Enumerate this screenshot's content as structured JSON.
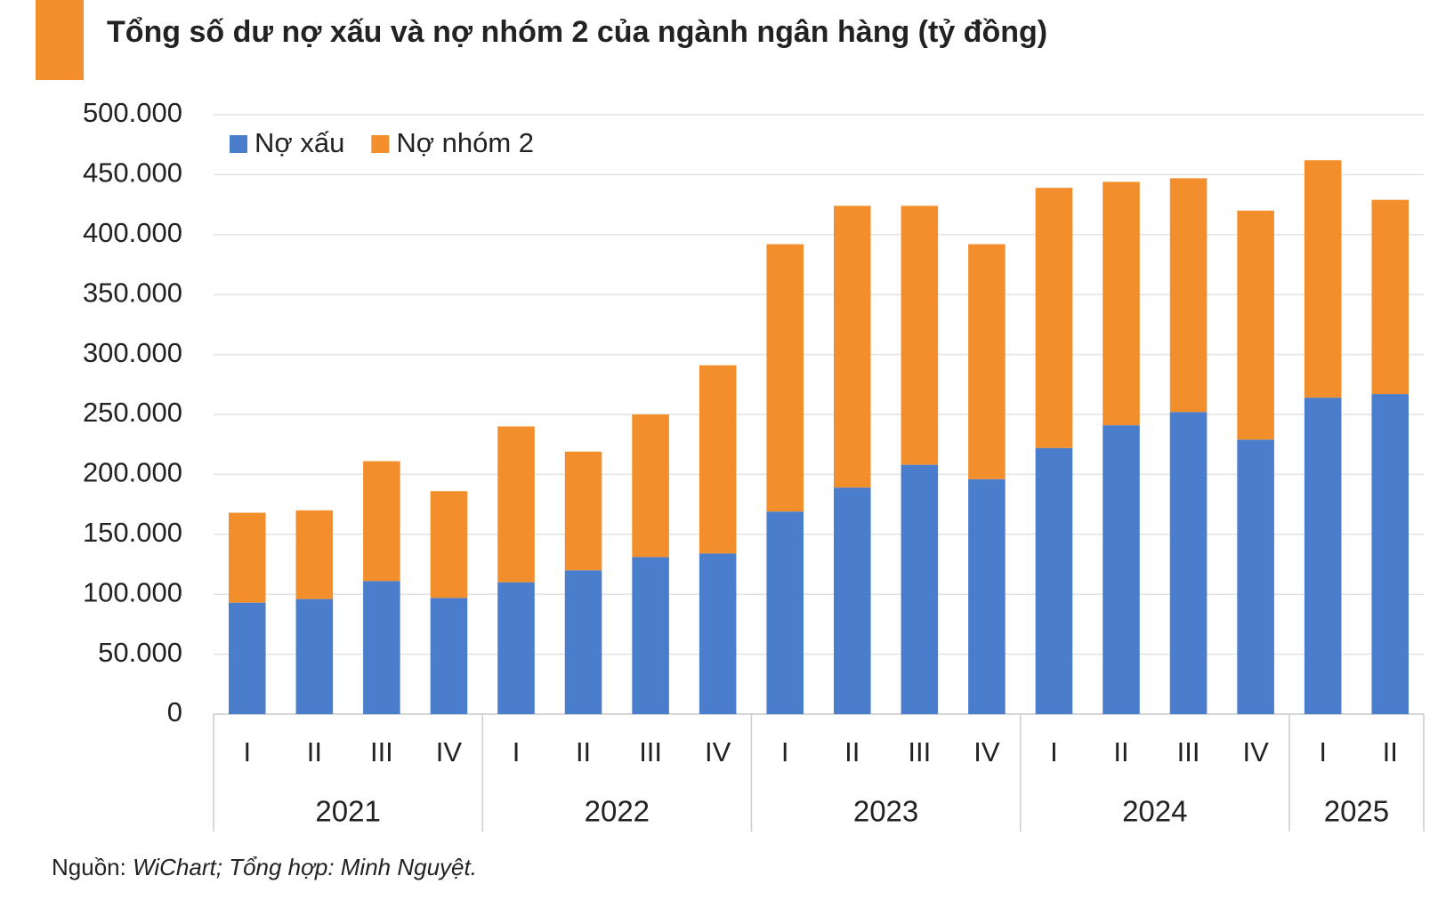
{
  "chart_data": {
    "type": "stacked-bar",
    "title": "Tổng số dư nợ xấu và nợ nhóm 2 của ngành ngân hàng (tỷ đồng)",
    "groups": [
      {
        "label": "2021",
        "categories": [
          "I",
          "II",
          "III",
          "IV"
        ]
      },
      {
        "label": "2022",
        "categories": [
          "I",
          "II",
          "III",
          "IV"
        ]
      },
      {
        "label": "2023",
        "categories": [
          "I",
          "II",
          "III",
          "IV"
        ]
      },
      {
        "label": "2024",
        "categories": [
          "I",
          "II",
          "III",
          "IV"
        ]
      },
      {
        "label": "2025",
        "categories": [
          "I",
          "II"
        ]
      }
    ],
    "series": [
      {
        "name": "Nợ xấu",
        "color": "#4a7dcc",
        "values": [
          93000,
          96000,
          111000,
          97000,
          110000,
          120000,
          131000,
          134000,
          169000,
          189000,
          208000,
          196000,
          222000,
          241000,
          252000,
          229000,
          264000,
          267000
        ]
      },
      {
        "name": "Nợ nhóm 2",
        "color": "#f28f2c",
        "values": [
          75000,
          74000,
          100000,
          89000,
          130000,
          99000,
          119000,
          157000,
          223000,
          235000,
          216000,
          196000,
          217000,
          203000,
          195000,
          191000,
          198000,
          162000
        ]
      }
    ],
    "ylim": [
      0,
      500000
    ],
    "yticks": [
      0,
      {
        "value": 50000,
        "label": "50.000"
      },
      {
        "value": 100000,
        "label": "100.000"
      },
      {
        "value": 150000,
        "label": "150.000"
      },
      {
        "value": 200000,
        "label": "200.000"
      },
      {
        "value": 250000,
        "label": "250.000"
      },
      {
        "value": 300000,
        "label": "300.000"
      },
      {
        "value": 350000,
        "label": "350.000"
      },
      {
        "value": 400000,
        "label": "400.000"
      },
      {
        "value": 450000,
        "label": "450.000"
      },
      {
        "value": 500000,
        "label": "500.000"
      }
    ],
    "grid": true,
    "legend": "top-left",
    "source": {
      "prefix": "Nguồn:",
      "text": "WiChart; Tổng hợp: Minh Nguyệt."
    }
  }
}
